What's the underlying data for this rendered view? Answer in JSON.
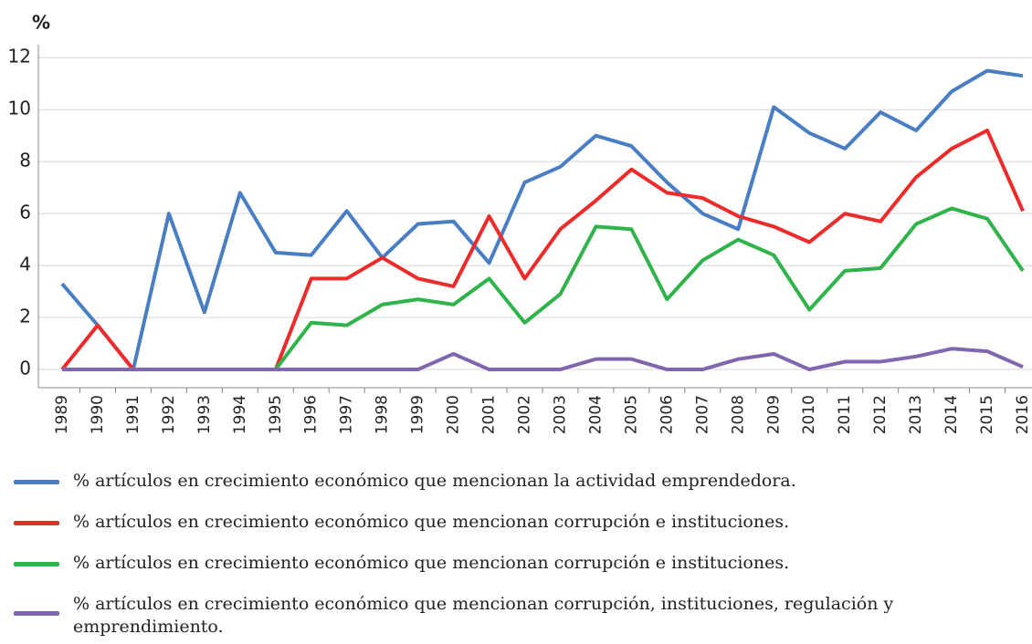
{
  "chart_data": {
    "type": "line",
    "y_label": "%",
    "categories": [
      "1989",
      "1990",
      "1991",
      "1992",
      "1993",
      "1994",
      "1995",
      "1996",
      "1997",
      "1998",
      "1999",
      "2000",
      "2001",
      "2002",
      "2003",
      "2004",
      "2005",
      "2006",
      "2007",
      "2008",
      "2009",
      "2010",
      "2011",
      "2012",
      "2013",
      "2014",
      "2015",
      "2016"
    ],
    "series": [
      {
        "name": "% artículos en crecimiento económico que mencionan la actividad emprendedora.",
        "color": "#4a7ec3",
        "values": [
          3.3,
          1.7,
          0,
          6.0,
          2.2,
          6.8,
          4.5,
          4.4,
          6.1,
          4.3,
          5.6,
          5.7,
          4.1,
          7.2,
          7.8,
          9.0,
          8.6,
          7.2,
          6.0,
          5.4,
          10.1,
          9.1,
          8.5,
          9.9,
          9.2,
          10.7,
          11.5,
          11.3
        ]
      },
      {
        "name": "% artículos en crecimiento económico que mencionan corrupción e instituciones.",
        "color": "#ee2b2b",
        "values": [
          0,
          1.7,
          0,
          0,
          0,
          0,
          0,
          3.5,
          3.5,
          4.3,
          3.5,
          3.2,
          5.9,
          3.5,
          5.4,
          6.5,
          7.7,
          6.8,
          6.6,
          5.9,
          5.5,
          4.9,
          6.0,
          5.7,
          7.4,
          8.5,
          9.2,
          6.1
        ]
      },
      {
        "name": "% artículos en crecimiento económico que mencionan corrupción e instituciones.",
        "color": "#2fb34a",
        "values": [
          0,
          0,
          0,
          0,
          0,
          0,
          0,
          1.8,
          1.7,
          2.5,
          2.7,
          2.5,
          3.5,
          1.8,
          2.9,
          5.5,
          5.4,
          2.7,
          4.2,
          5.0,
          4.4,
          2.3,
          3.8,
          3.9,
          5.6,
          6.2,
          5.8,
          3.8
        ]
      },
      {
        "name": "% artículos en crecimiento económico que mencionan corrupción, instituciones, regulación y emprendimiento.",
        "color": "#8066ac",
        "values": [
          0,
          0,
          0,
          0,
          0,
          0,
          0,
          0,
          0,
          0,
          0,
          0.6,
          0,
          0,
          0,
          0.4,
          0.4,
          0,
          0,
          0.4,
          0.6,
          0,
          0.3,
          0.3,
          0.5,
          0.8,
          0.7,
          0.1
        ]
      }
    ],
    "ylim": [
      -0.7,
      12.5
    ],
    "yticks": [
      0,
      2,
      4,
      6,
      8,
      10,
      12
    ],
    "grid": true
  }
}
